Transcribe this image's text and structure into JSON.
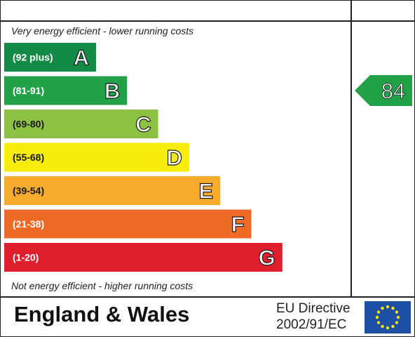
{
  "captions": {
    "top": "Very energy efficient - lower running costs",
    "bottom": "Not energy efficient - higher running costs"
  },
  "footer": {
    "region": "England & Wales",
    "directive_line1": "EU Directive",
    "directive_line2": "2002/91/EC"
  },
  "chart_data": {
    "type": "bar",
    "bands": [
      {
        "range": "(92 plus)",
        "letter": "A",
        "color": "#138a45"
      },
      {
        "range": "(81-91)",
        "letter": "B",
        "color": "#23a149"
      },
      {
        "range": "(69-80)",
        "letter": "C",
        "color": "#8dc143"
      },
      {
        "range": "(55-68)",
        "letter": "D",
        "color": "#f6ed0f"
      },
      {
        "range": "(39-54)",
        "letter": "E",
        "color": "#f7ab2c"
      },
      {
        "range": "(21-38)",
        "letter": "F",
        "color": "#ef6a27"
      },
      {
        "range": "(1-20)",
        "letter": "G",
        "color": "#e01f2e"
      }
    ],
    "current": {
      "value": "84",
      "band": "B",
      "color": "#23a149"
    }
  }
}
